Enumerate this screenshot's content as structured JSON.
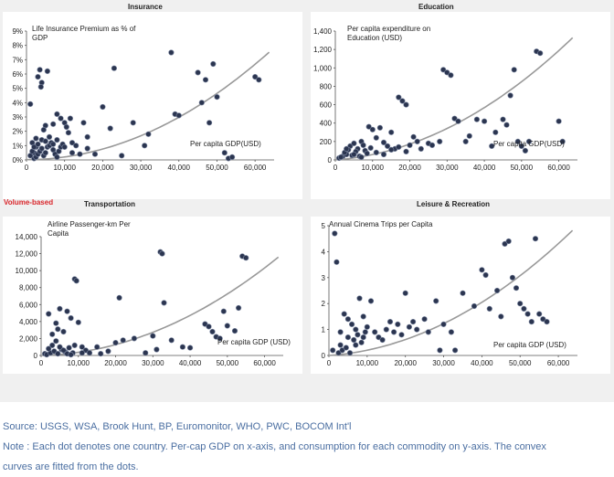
{
  "volume_label": "Volume-based",
  "footer": {
    "source": "Source: USGS, WSA, Brook Hunt, BP, Euromonitor, WHO, PWC, BOCOM Int'l",
    "note_line1": "Note : Each dot denotes one country. Per-cap GDP on x-axis, and consumption for each commodity on y-axis. The convex",
    "note_line2": "curves are fitted from the dots."
  },
  "colors": {
    "dot": "#2b3550",
    "curve": "#999999",
    "panel_bg": "#ffffff",
    "area_bg": "#f0f0f0",
    "accent": "#d9262b"
  },
  "chart_data": [
    {
      "type": "scatter",
      "title": "Insurance",
      "ylabel": "Life Insurance Premium as % of GDP",
      "xlabel": "Per capita GDP(USD)",
      "xlim": [
        0,
        65000
      ],
      "ylim": [
        0,
        9
      ],
      "xticks": [
        "0",
        "10,000",
        "20,000",
        "30,000",
        "40,000",
        "50,000",
        "60,000"
      ],
      "yticks": [
        "0%",
        "1%",
        "2%",
        "3%",
        "4%",
        "5%",
        "6%",
        "7%",
        "8%",
        "9%"
      ],
      "xtick_values": [
        0,
        10000,
        20000,
        30000,
        40000,
        50000,
        60000
      ],
      "ytick_values": [
        0,
        1,
        2,
        3,
        4,
        5,
        6,
        7,
        8,
        9
      ],
      "trend": {
        "a": 0.02,
        "b": 0,
        "c": 1.85e-09
      },
      "points": [
        [
          1000,
          3.9
        ],
        [
          1500,
          1.2
        ],
        [
          2000,
          0.5
        ],
        [
          2500,
          0.9
        ],
        [
          3000,
          5.8
        ],
        [
          3500,
          6.3
        ],
        [
          4000,
          5.4
        ],
        [
          3800,
          5.1
        ],
        [
          5500,
          6.2
        ],
        [
          5000,
          2.4
        ],
        [
          7000,
          2.5
        ],
        [
          8000,
          3.2
        ],
        [
          9000,
          2.9
        ],
        [
          10000,
          2.6
        ],
        [
          10500,
          2.3
        ],
        [
          11000,
          1.9
        ],
        [
          11500,
          2.9
        ],
        [
          12000,
          1.2
        ],
        [
          13000,
          1.0
        ],
        [
          15000,
          2.6
        ],
        [
          16000,
          1.6
        ],
        [
          18000,
          0.4
        ],
        [
          20000,
          3.7
        ],
        [
          22000,
          2.2
        ],
        [
          23000,
          6.4
        ],
        [
          25000,
          0.3
        ],
        [
          28000,
          2.6
        ],
        [
          31000,
          1.0
        ],
        [
          32000,
          1.8
        ],
        [
          38000,
          7.5
        ],
        [
          39000,
          3.2
        ],
        [
          40000,
          3.1
        ],
        [
          45000,
          6.1
        ],
        [
          46000,
          4.0
        ],
        [
          47000,
          5.6
        ],
        [
          48000,
          2.6
        ],
        [
          49000,
          6.7
        ],
        [
          50000,
          4.4
        ],
        [
          52000,
          0.5
        ],
        [
          53000,
          0.1
        ],
        [
          54000,
          0.2
        ],
        [
          60000,
          5.8
        ],
        [
          61000,
          5.6
        ],
        [
          2000,
          0.1
        ],
        [
          2500,
          0.2
        ],
        [
          3000,
          0.4
        ],
        [
          3500,
          0.6
        ],
        [
          4000,
          0.8
        ],
        [
          4500,
          0.3
        ],
        [
          5000,
          0.5
        ],
        [
          5500,
          0.9
        ],
        [
          6000,
          1.0
        ],
        [
          6500,
          1.2
        ],
        [
          7000,
          0.7
        ],
        [
          7500,
          0.4
        ],
        [
          8000,
          0.2
        ],
        [
          8500,
          0.6
        ],
        [
          9000,
          0.9
        ],
        [
          9500,
          1.1
        ],
        [
          1000,
          0.3
        ],
        [
          1500,
          0.6
        ],
        [
          2000,
          0.9
        ],
        [
          4000,
          1.4
        ],
        [
          6000,
          1.6
        ],
        [
          3000,
          1.1
        ],
        [
          5000,
          1.3
        ],
        [
          7000,
          1.1
        ],
        [
          8000,
          1.4
        ],
        [
          10000,
          0.9
        ],
        [
          12000,
          0.5
        ],
        [
          14000,
          0.4
        ],
        [
          16000,
          0.8
        ],
        [
          2500,
          1.5
        ],
        [
          4500,
          2.1
        ]
      ]
    },
    {
      "type": "scatter",
      "title": "Education",
      "ylabel": "Per capita expenditure on Education (USD)",
      "xlabel": "Per capita GDP(USD)",
      "xlim": [
        0,
        65000
      ],
      "ylim": [
        0,
        1400
      ],
      "xticks": [
        "0",
        "10,000",
        "20,000",
        "30,000",
        "40,000",
        "50,000",
        "60,000"
      ],
      "yticks": [
        "0",
        "200",
        "400",
        "600",
        "800",
        "1,000",
        "1,200",
        "1,400"
      ],
      "xtick_values": [
        0,
        10000,
        20000,
        30000,
        40000,
        50000,
        60000
      ],
      "ytick_values": [
        0,
        200,
        400,
        600,
        800,
        1000,
        1200,
        1400
      ],
      "trend": {
        "a": 0,
        "b": 0.003,
        "c": 2.8e-07
      },
      "points": [
        [
          1000,
          20
        ],
        [
          2000,
          40
        ],
        [
          3000,
          60
        ],
        [
          4000,
          150
        ],
        [
          5000,
          180
        ],
        [
          6000,
          120
        ],
        [
          7000,
          200
        ],
        [
          8000,
          100
        ],
        [
          9000,
          360
        ],
        [
          10000,
          330
        ],
        [
          11000,
          240
        ],
        [
          12000,
          350
        ],
        [
          13000,
          190
        ],
        [
          14000,
          150
        ],
        [
          15000,
          300
        ],
        [
          16000,
          120
        ],
        [
          17000,
          680
        ],
        [
          18000,
          640
        ],
        [
          19000,
          600
        ],
        [
          20000,
          160
        ],
        [
          22000,
          200
        ],
        [
          25000,
          180
        ],
        [
          28000,
          200
        ],
        [
          29000,
          980
        ],
        [
          30000,
          950
        ],
        [
          31000,
          920
        ],
        [
          32000,
          450
        ],
        [
          33000,
          420
        ],
        [
          35000,
          200
        ],
        [
          38000,
          440
        ],
        [
          40000,
          420
        ],
        [
          42000,
          150
        ],
        [
          45000,
          440
        ],
        [
          46000,
          380
        ],
        [
          47000,
          700
        ],
        [
          48000,
          980
        ],
        [
          49000,
          200
        ],
        [
          50000,
          150
        ],
        [
          51000,
          100
        ],
        [
          52000,
          200
        ],
        [
          54000,
          1180
        ],
        [
          55000,
          1160
        ],
        [
          60000,
          420
        ],
        [
          61000,
          200
        ],
        [
          2500,
          80
        ],
        [
          3500,
          110
        ],
        [
          4500,
          50
        ],
        [
          5500,
          90
        ],
        [
          6500,
          40
        ],
        [
          7500,
          160
        ],
        [
          8500,
          70
        ],
        [
          9500,
          130
        ],
        [
          1500,
          30
        ],
        [
          3000,
          120
        ],
        [
          5000,
          60
        ],
        [
          7000,
          30
        ],
        [
          11000,
          80
        ],
        [
          13000,
          60
        ],
        [
          15000,
          110
        ],
        [
          17000,
          140
        ],
        [
          19000,
          90
        ],
        [
          21000,
          250
        ],
        [
          23000,
          120
        ],
        [
          26000,
          160
        ],
        [
          36000,
          260
        ],
        [
          43000,
          300
        ]
      ]
    },
    {
      "type": "scatter",
      "title": "Transportation",
      "ylabel": "Airline Passenger-km Per Capita",
      "xlabel": "Per capita GDP (USD)",
      "xlim": [
        0,
        65000
      ],
      "ylim": [
        0,
        14000
      ],
      "xticks": [
        "0",
        "10,000",
        "20,000",
        "30,000",
        "40,000",
        "50,000",
        "60,000"
      ],
      "yticks": [
        "0",
        "2,000",
        "4,000",
        "6,000",
        "8,000",
        "10,000",
        "12,000",
        "14,000"
      ],
      "xtick_values": [
        0,
        10000,
        20000,
        30000,
        40000,
        50000,
        60000
      ],
      "ytick_values": [
        0,
        2000,
        4000,
        6000,
        8000,
        10000,
        12000,
        14000
      ],
      "trend": {
        "a": 0,
        "b": 0.01,
        "c": 2.7e-06
      },
      "points": [
        [
          1000,
          200
        ],
        [
          2000,
          4900
        ],
        [
          3000,
          1200
        ],
        [
          4000,
          3800
        ],
        [
          5000,
          5500
        ],
        [
          6000,
          2800
        ],
        [
          7000,
          5200
        ],
        [
          8000,
          4400
        ],
        [
          9000,
          9000
        ],
        [
          9500,
          8800
        ],
        [
          10000,
          3900
        ],
        [
          11000,
          1000
        ],
        [
          12000,
          600
        ],
        [
          13000,
          300
        ],
        [
          15000,
          1000
        ],
        [
          18000,
          500
        ],
        [
          20000,
          1500
        ],
        [
          21000,
          6800
        ],
        [
          22000,
          1800
        ],
        [
          25000,
          2000
        ],
        [
          28000,
          300
        ],
        [
          30000,
          2300
        ],
        [
          31000,
          700
        ],
        [
          32000,
          12200
        ],
        [
          32500,
          12000
        ],
        [
          33000,
          6200
        ],
        [
          35000,
          1800
        ],
        [
          38000,
          1000
        ],
        [
          40000,
          900
        ],
        [
          44000,
          3700
        ],
        [
          45000,
          3400
        ],
        [
          46000,
          2800
        ],
        [
          47000,
          2200
        ],
        [
          48000,
          2000
        ],
        [
          49000,
          5200
        ],
        [
          50000,
          3500
        ],
        [
          52000,
          2900
        ],
        [
          53000,
          5600
        ],
        [
          54000,
          11700
        ],
        [
          55000,
          11500
        ],
        [
          1500,
          100
        ],
        [
          2500,
          300
        ],
        [
          3500,
          500
        ],
        [
          4500,
          200
        ],
        [
          5500,
          700
        ],
        [
          6500,
          400
        ],
        [
          7500,
          900
        ],
        [
          8500,
          300
        ],
        [
          3000,
          2500
        ],
        [
          4000,
          1700
        ],
        [
          5000,
          1000
        ],
        [
          6000,
          600
        ],
        [
          7000,
          200
        ],
        [
          8000,
          100
        ],
        [
          2000,
          800
        ],
        [
          4500,
          3100
        ],
        [
          9000,
          1200
        ],
        [
          11000,
          300
        ],
        [
          16000,
          200
        ]
      ]
    },
    {
      "type": "scatter",
      "title": "Leisure & Recreation",
      "ylabel": "Annual Cinema Trips per Capita",
      "xlabel": "Per capita GDP (USD)",
      "xlim": [
        0,
        65000
      ],
      "ylim": [
        0,
        5
      ],
      "xticks": [
        "0",
        "10,000",
        "20,000",
        "30,000",
        "40,000",
        "50,000",
        "60,000"
      ],
      "yticks": [
        "0",
        "1",
        "2",
        "3",
        "4",
        "5"
      ],
      "xtick_values": [
        0,
        10000,
        20000,
        30000,
        40000,
        50000,
        60000
      ],
      "ytick_values": [
        0,
        1,
        2,
        3,
        4,
        5
      ],
      "trend": {
        "a": 0,
        "b": 1e-05,
        "c": 1.03e-09
      },
      "points": [
        [
          1000,
          0.2
        ],
        [
          1500,
          4.7
        ],
        [
          2000,
          3.6
        ],
        [
          3000,
          0.9
        ],
        [
          4000,
          1.6
        ],
        [
          5000,
          1.4
        ],
        [
          6000,
          1.2
        ],
        [
          7000,
          0.4
        ],
        [
          8000,
          2.2
        ],
        [
          9000,
          1.5
        ],
        [
          10000,
          1.1
        ],
        [
          11000,
          2.1
        ],
        [
          12000,
          0.9
        ],
        [
          13000,
          0.7
        ],
        [
          15000,
          1.0
        ],
        [
          16000,
          1.3
        ],
        [
          18000,
          1.2
        ],
        [
          20000,
          2.4
        ],
        [
          21000,
          1.1
        ],
        [
          22000,
          1.3
        ],
        [
          25000,
          1.4
        ],
        [
          28000,
          2.1
        ],
        [
          30000,
          1.2
        ],
        [
          32000,
          0.9
        ],
        [
          33000,
          0.2
        ],
        [
          35000,
          2.4
        ],
        [
          38000,
          1.9
        ],
        [
          40000,
          3.3
        ],
        [
          41000,
          3.1
        ],
        [
          42000,
          1.8
        ],
        [
          44000,
          2.5
        ],
        [
          45000,
          1.5
        ],
        [
          46000,
          4.3
        ],
        [
          47000,
          4.4
        ],
        [
          48000,
          3.0
        ],
        [
          49000,
          2.6
        ],
        [
          50000,
          2.0
        ],
        [
          51000,
          1.8
        ],
        [
          52000,
          1.6
        ],
        [
          53000,
          1.3
        ],
        [
          54000,
          4.5
        ],
        [
          55000,
          1.6
        ],
        [
          56000,
          1.4
        ],
        [
          57000,
          1.3
        ],
        [
          2500,
          0.1
        ],
        [
          3500,
          0.2
        ],
        [
          4500,
          0.3
        ],
        [
          5500,
          0.1
        ],
        [
          6500,
          0.6
        ],
        [
          7500,
          0.8
        ],
        [
          8500,
          0.5
        ],
        [
          9500,
          0.9
        ],
        [
          3000,
          0.4
        ],
        [
          5000,
          0.7
        ],
        [
          7000,
          1.0
        ],
        [
          9000,
          0.7
        ],
        [
          14000,
          0.6
        ],
        [
          17000,
          0.9
        ],
        [
          19000,
          0.8
        ],
        [
          23000,
          1.0
        ],
        [
          26000,
          0.9
        ],
        [
          29000,
          0.2
        ]
      ]
    }
  ]
}
